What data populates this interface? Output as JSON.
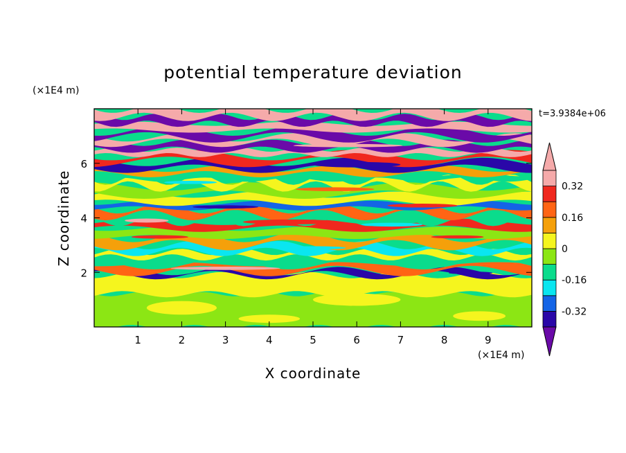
{
  "chart_data": {
    "type": "heatmap",
    "title": "potential temperature deviation",
    "xlabel": "X coordinate",
    "ylabel": "Z coordinate",
    "x_unit": "(×1E4 m)",
    "y_unit": "(×1E4 m)",
    "time_label": "t=3.9384e+06",
    "xlim": [
      0,
      10
    ],
    "ylim": [
      0,
      8
    ],
    "x_ticks": [
      "1",
      "2",
      "3",
      "4",
      "5",
      "6",
      "7",
      "8",
      "9"
    ],
    "y_ticks": [
      "2",
      "4",
      "6"
    ],
    "colorbar": {
      "levels": [
        -0.4,
        -0.32,
        -0.24,
        -0.16,
        -0.08,
        0,
        0.08,
        0.16,
        0.24,
        0.32,
        0.4
      ],
      "labels": [
        "0.32",
        "0.16",
        "0",
        "-0.16",
        "-0.32"
      ],
      "label_values": [
        0.32,
        0.16,
        0,
        -0.16,
        -0.32
      ],
      "colors": [
        "#6a0aa8",
        "#2a07a8",
        "#1464e6",
        "#0ae6f0",
        "#0adc8c",
        "#8ce614",
        "#f5f51e",
        "#f5a00a",
        "#ff6414",
        "#f0281e",
        "#f5aaaa"
      ]
    },
    "bands": [
      {
        "z0": 0.0,
        "z1": 1.2,
        "v": -0.03
      },
      {
        "z0": 1.2,
        "z1": 1.9,
        "v": 0.03
      },
      {
        "z0": 1.9,
        "z1": 2.05,
        "v": -0.36
      },
      {
        "z0": 2.05,
        "z1": 2.3,
        "v": 0.2
      },
      {
        "z0": 2.3,
        "z1": 2.55,
        "v": -0.1
      },
      {
        "z0": 2.55,
        "z1": 2.75,
        "v": 0.04
      },
      {
        "z0": 2.75,
        "z1": 3.0,
        "v": -0.18
      },
      {
        "z0": 3.0,
        "z1": 3.3,
        "v": 0.15
      },
      {
        "z0": 3.3,
        "z1": 3.6,
        "v": -0.05
      },
      {
        "z0": 3.6,
        "z1": 3.85,
        "v": 0.28
      },
      {
        "z0": 3.85,
        "z1": 4.1,
        "v": -0.12
      },
      {
        "z0": 4.1,
        "z1": 4.35,
        "v": 0.2
      },
      {
        "z0": 4.35,
        "z1": 4.55,
        "v": -0.3
      },
      {
        "z0": 4.55,
        "z1": 4.85,
        "v": 0.05
      },
      {
        "z0": 4.85,
        "z1": 5.15,
        "v": -0.07
      },
      {
        "z0": 5.15,
        "z1": 5.4,
        "v": 0.03
      },
      {
        "z0": 5.4,
        "z1": 5.6,
        "v": -0.14
      },
      {
        "z0": 5.6,
        "z1": 5.8,
        "v": 0.13
      },
      {
        "z0": 5.8,
        "z1": 6.05,
        "v": -0.35
      },
      {
        "z0": 6.05,
        "z1": 6.3,
        "v": 0.3
      },
      {
        "z0": 6.3,
        "z1": 6.5,
        "v": 0.45
      },
      {
        "z0": 6.5,
        "z1": 6.75,
        "v": -0.45
      },
      {
        "z0": 6.75,
        "z1": 6.95,
        "v": 0.45
      },
      {
        "z0": 6.95,
        "z1": 7.2,
        "v": -0.45
      },
      {
        "z0": 7.2,
        "z1": 7.45,
        "v": 0.45
      },
      {
        "z0": 7.45,
        "z1": 7.7,
        "v": -0.45
      },
      {
        "z0": 7.7,
        "z1": 8.0,
        "v": 0.45
      }
    ],
    "features": [
      {
        "x": 4.5,
        "z": 3.85,
        "w": 2.2,
        "h": 0.18,
        "v": 0.3
      },
      {
        "x": 1.2,
        "z": 3.9,
        "w": 1.0,
        "h": 0.15,
        "v": 0.34
      },
      {
        "x": 6.8,
        "z": 3.75,
        "w": 1.4,
        "h": 0.14,
        "v": -0.2
      },
      {
        "x": 3.0,
        "z": 4.4,
        "w": 1.5,
        "h": 0.12,
        "v": -0.34
      },
      {
        "x": 7.5,
        "z": 4.45,
        "w": 1.6,
        "h": 0.14,
        "v": 0.25
      },
      {
        "x": 5.5,
        "z": 5.05,
        "w": 1.8,
        "h": 0.14,
        "v": 0.22
      },
      {
        "x": 2.2,
        "z": 5.3,
        "w": 1.2,
        "h": 0.12,
        "v": -0.2
      },
      {
        "x": 6.0,
        "z": 5.95,
        "w": 2.0,
        "h": 0.2,
        "v": -0.38
      },
      {
        "x": 3.0,
        "z": 2.15,
        "w": 2.5,
        "h": 0.12,
        "v": 0.34
      },
      {
        "x": 8.6,
        "z": 1.98,
        "w": 1.0,
        "h": 0.1,
        "v": -0.4
      },
      {
        "x": 1.5,
        "z": 3.3,
        "w": 1.3,
        "h": 0.13,
        "v": 0.27
      },
      {
        "x": 8.3,
        "z": 3.3,
        "w": 1.2,
        "h": 0.12,
        "v": 0.3
      },
      {
        "x": 5.0,
        "z": 2.9,
        "w": 1.5,
        "h": 0.12,
        "v": -0.22
      },
      {
        "x": 2.0,
        "z": 0.7,
        "w": 1.6,
        "h": 0.5,
        "v": 0.04
      },
      {
        "x": 6.0,
        "z": 1.0,
        "w": 2.0,
        "h": 0.45,
        "v": 0.04
      },
      {
        "x": 8.8,
        "z": 0.4,
        "w": 1.2,
        "h": 0.35,
        "v": 0.04
      },
      {
        "x": 4.0,
        "z": 0.3,
        "w": 1.4,
        "h": 0.3,
        "v": 0.04
      },
      {
        "x": 5.8,
        "z": 6.65,
        "w": 2.5,
        "h": 0.12,
        "v": 0.34
      }
    ]
  }
}
